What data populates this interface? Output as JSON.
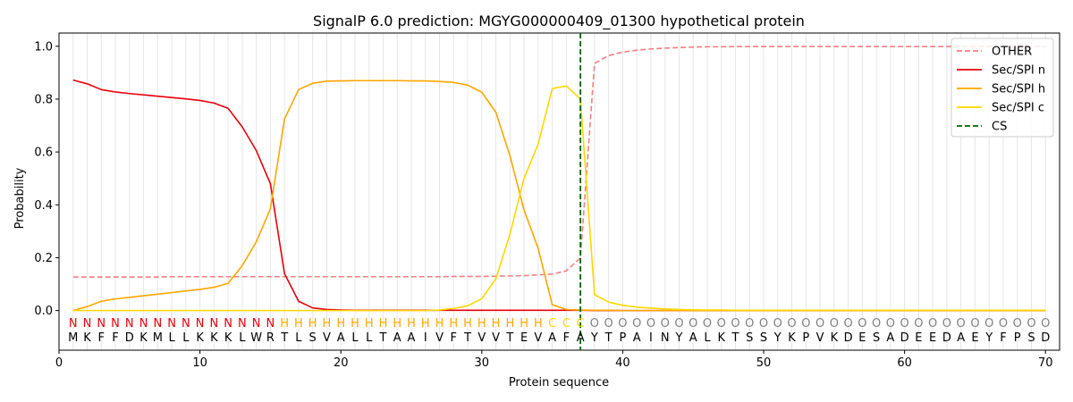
{
  "chart_data": {
    "type": "line",
    "title": "SignalP 6.0 prediction: MGYG000000409_01300 hypothetical protein",
    "xlabel": "Protein sequence",
    "ylabel": "Probability",
    "xlim": [
      0,
      71
    ],
    "ylim": [
      -0.15,
      1.05
    ],
    "xticks": [
      0,
      10,
      20,
      30,
      40,
      50,
      60,
      70
    ],
    "yticks": [
      0.0,
      0.2,
      0.4,
      0.6,
      0.8,
      1.0
    ],
    "ytick_labels": [
      "0.0",
      "0.2",
      "0.4",
      "0.6",
      "0.8",
      "1.0"
    ],
    "grid": "vertical lines at each residue",
    "legend_position": "top-right",
    "sequence": [
      "M",
      "K",
      "F",
      "F",
      "D",
      "K",
      "M",
      "L",
      "L",
      "K",
      "K",
      "K",
      "L",
      "W",
      "R",
      "T",
      "L",
      "S",
      "V",
      "A",
      "L",
      "L",
      "T",
      "A",
      "A",
      "I",
      "V",
      "F",
      "T",
      "V",
      "V",
      "T",
      "E",
      "V",
      "A",
      "F",
      "A",
      "Y",
      "T",
      "P",
      "A",
      "I",
      "N",
      "Y",
      "A",
      "L",
      "K",
      "T",
      "S",
      "S",
      "Y",
      "K",
      "P",
      "V",
      "K",
      "D",
      "E",
      "S",
      "A",
      "D",
      "E",
      "E",
      "D",
      "A",
      "E",
      "Y",
      "F",
      "P",
      "S",
      "D"
    ],
    "labels": [
      "N",
      "N",
      "N",
      "N",
      "N",
      "N",
      "N",
      "N",
      "N",
      "N",
      "N",
      "N",
      "N",
      "N",
      "N",
      "H",
      "H",
      "H",
      "H",
      "H",
      "H",
      "H",
      "H",
      "H",
      "H",
      "H",
      "H",
      "H",
      "H",
      "H",
      "H",
      "H",
      "H",
      "H",
      "C",
      "C",
      "C",
      "O",
      "O",
      "O",
      "O",
      "O",
      "O",
      "O",
      "O",
      "O",
      "O",
      "O",
      "O",
      "O",
      "O",
      "O",
      "O",
      "O",
      "O",
      "O",
      "O",
      "O",
      "O",
      "O",
      "O",
      "O",
      "O",
      "O",
      "O",
      "O",
      "O",
      "O",
      "O",
      "O"
    ],
    "label_colors": {
      "N": "#e8000b",
      "H": "#ffa500",
      "C": "#ffd700",
      "O": "#808080"
    },
    "x": [
      1,
      2,
      3,
      4,
      5,
      6,
      7,
      8,
      9,
      10,
      11,
      12,
      13,
      14,
      15,
      16,
      17,
      18,
      19,
      20,
      21,
      22,
      23,
      24,
      25,
      26,
      27,
      28,
      29,
      30,
      31,
      32,
      33,
      34,
      35,
      36,
      37,
      38,
      39,
      40,
      41,
      42,
      43,
      44,
      45,
      46,
      47,
      48,
      49,
      50,
      51,
      52,
      53,
      54,
      55,
      56,
      57,
      58,
      59,
      60,
      61,
      62,
      63,
      64,
      65,
      66,
      67,
      68,
      69,
      70
    ],
    "series": [
      {
        "name": "OTHER",
        "color": "#f08080",
        "dash": "dashed",
        "values": [
          0.127,
          0.127,
          0.127,
          0.127,
          0.127,
          0.127,
          0.127,
          0.128,
          0.128,
          0.128,
          0.128,
          0.128,
          0.128,
          0.128,
          0.128,
          0.128,
          0.128,
          0.128,
          0.128,
          0.128,
          0.128,
          0.128,
          0.128,
          0.128,
          0.128,
          0.128,
          0.128,
          0.129,
          0.129,
          0.129,
          0.13,
          0.131,
          0.132,
          0.135,
          0.138,
          0.15,
          0.2,
          0.935,
          0.965,
          0.978,
          0.985,
          0.99,
          0.993,
          0.995,
          0.997,
          0.998,
          0.998,
          0.999,
          0.999,
          0.999,
          0.999,
          0.999,
          0.999,
          0.999,
          0.999,
          0.999,
          0.999,
          0.999,
          0.999,
          0.999,
          0.999,
          0.999,
          0.999,
          0.999,
          0.999,
          0.999,
          0.999,
          0.999,
          0.999,
          0.999
        ]
      },
      {
        "name": "Sec/SPI n",
        "color": "#e8000b",
        "dash": "solid",
        "values": [
          0.872,
          0.858,
          0.836,
          0.827,
          0.821,
          0.816,
          0.811,
          0.806,
          0.801,
          0.795,
          0.785,
          0.765,
          0.695,
          0.605,
          0.48,
          0.14,
          0.035,
          0.01,
          0.004,
          0.002,
          0.001,
          0.001,
          0.001,
          0.001,
          0.001,
          0.001,
          0.001,
          0.001,
          0.001,
          0.001,
          0.001,
          0.001,
          0.001,
          0.001,
          0.001,
          0.001,
          0.001,
          0.0,
          0.0,
          0.0,
          0.0,
          0.0,
          0.0,
          0.0,
          0.0,
          0.0,
          0.0,
          0.0,
          0.0,
          0.0,
          0.0,
          0.0,
          0.0,
          0.0,
          0.0,
          0.0,
          0.0,
          0.0,
          0.0,
          0.0,
          0.0,
          0.0,
          0.0,
          0.0,
          0.0,
          0.0,
          0.0,
          0.0,
          0.0,
          0.0
        ]
      },
      {
        "name": "Sec/SPI h",
        "color": "#ffa500",
        "dash": "solid",
        "values": [
          0.0,
          0.015,
          0.035,
          0.044,
          0.05,
          0.056,
          0.062,
          0.068,
          0.074,
          0.08,
          0.088,
          0.103,
          0.17,
          0.26,
          0.385,
          0.725,
          0.836,
          0.86,
          0.868,
          0.869,
          0.87,
          0.87,
          0.87,
          0.87,
          0.869,
          0.869,
          0.867,
          0.863,
          0.853,
          0.826,
          0.75,
          0.585,
          0.38,
          0.235,
          0.022,
          0.004,
          0.002,
          0.001,
          0.001,
          0.0,
          0.0,
          0.0,
          0.0,
          0.0,
          0.0,
          0.0,
          0.0,
          0.0,
          0.0,
          0.0,
          0.0,
          0.0,
          0.0,
          0.0,
          0.0,
          0.0,
          0.0,
          0.0,
          0.0,
          0.0,
          0.0,
          0.0,
          0.0,
          0.0,
          0.0,
          0.0,
          0.0,
          0.0,
          0.0,
          0.0
        ]
      },
      {
        "name": "Sec/SPI c",
        "color": "#ffd700",
        "dash": "solid",
        "values": [
          0.0,
          0.0,
          0.0,
          0.0,
          0.0,
          0.0,
          0.0,
          0.0,
          0.0,
          0.0,
          0.0,
          0.0,
          0.0,
          0.0,
          0.0,
          0.0,
          0.0,
          0.0,
          0.0,
          0.0,
          0.0,
          0.0,
          0.0,
          0.0,
          0.0,
          0.0,
          0.002,
          0.008,
          0.018,
          0.045,
          0.12,
          0.29,
          0.5,
          0.63,
          0.84,
          0.85,
          0.8,
          0.06,
          0.032,
          0.02,
          0.013,
          0.009,
          0.006,
          0.004,
          0.003,
          0.002,
          0.002,
          0.001,
          0.001,
          0.001,
          0.001,
          0.001,
          0.001,
          0.001,
          0.001,
          0.001,
          0.001,
          0.001,
          0.001,
          0.001,
          0.001,
          0.001,
          0.001,
          0.001,
          0.001,
          0.001,
          0.001,
          0.001,
          0.001,
          0.001
        ]
      }
    ],
    "cs": {
      "name": "CS",
      "x": 37,
      "color": "#006400",
      "dash": "dashed"
    }
  }
}
